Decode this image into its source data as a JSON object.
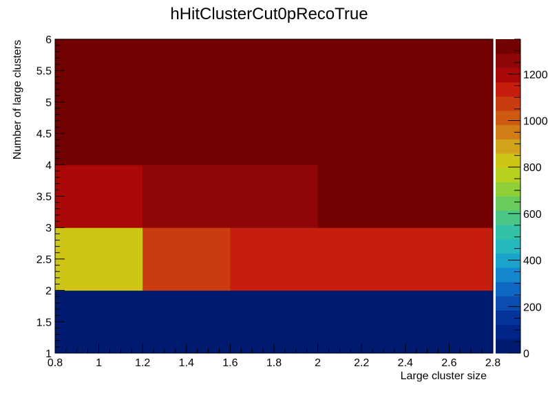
{
  "chart_data": {
    "type": "heatmap",
    "title": "hHitClusterCut0pRecoTrue",
    "xlabel": "Large cluster size",
    "ylabel": "Number of large clusters",
    "xlim": [
      0.8,
      2.8
    ],
    "ylim": [
      1,
      6
    ],
    "zlim": [
      0,
      1350
    ],
    "x_ticks": [
      "0.8",
      "1",
      "1.2",
      "1.4",
      "1.6",
      "1.8",
      "2",
      "2.2",
      "2.4",
      "2.6",
      "2.8"
    ],
    "y_ticks": [
      "1",
      "1.5",
      "2",
      "2.5",
      "3",
      "3.5",
      "4",
      "4.5",
      "5",
      "5.5",
      "6"
    ],
    "z_ticks": [
      "0",
      "200",
      "400",
      "600",
      "800",
      "1000",
      "1200"
    ],
    "x_edges": [
      0.8,
      1.2,
      1.6,
      2.0,
      2.4,
      2.8
    ],
    "y_edges": [
      1,
      2,
      3,
      4,
      6
    ],
    "cells": [
      [
        30,
        30,
        30,
        30,
        30
      ],
      [
        820,
        1060,
        1110,
        1160,
        1160
      ],
      [
        1200,
        1270,
        1270,
        1350,
        1350
      ],
      [
        1350,
        1350,
        1350,
        1350,
        1350
      ]
    ],
    "palette": [
      "#001a70",
      "#002487",
      "#04339a",
      "#0a4cb0",
      "#0f68c4",
      "#1487cf",
      "#1ca3cc",
      "#26b8bf",
      "#33c2a8",
      "#4cc687",
      "#6acb5d",
      "#8fcf38",
      "#b8d01e",
      "#cec516",
      "#d1a31a",
      "#d17d17",
      "#ce5a12",
      "#ca3c0f",
      "#c51d0e",
      "#aa0808",
      "#8e0606",
      "#720000"
    ],
    "grid": false,
    "legend": "right colorbar"
  }
}
